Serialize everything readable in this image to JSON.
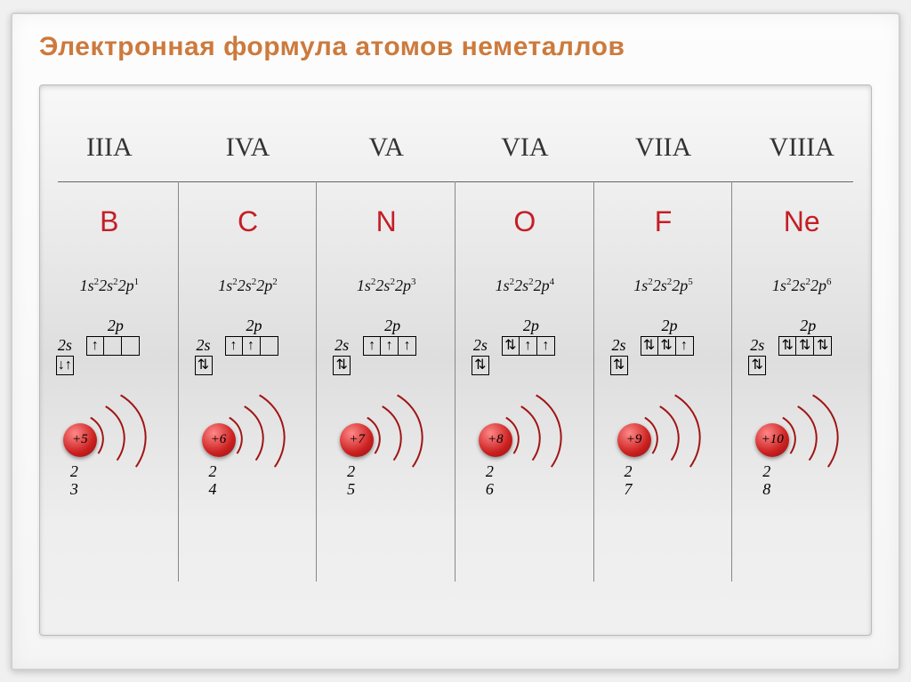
{
  "title": "Электронная формула атомов неметаллов",
  "colors": {
    "title": "#cc7a3d",
    "symbol": "#c41e26",
    "nucleus_gradient": [
      "#ff8888",
      "#cc2020",
      "#881010"
    ],
    "shell": "#a01515",
    "divider": "#888888",
    "text": "#111111",
    "background": "#f0f0f0"
  },
  "fonts": {
    "title_family": "Arial",
    "title_size": 30,
    "group_size": 30,
    "symbol_size": 32,
    "config_size": 18,
    "orbital_label_size": 18
  },
  "orbital_labels": {
    "s": "2s",
    "p": "2p"
  },
  "elements": [
    {
      "group": "IIIA",
      "symbol": "B",
      "config_html": "1s<sup>2</sup>2s<sup>2</sup>2p<sup>1</sup>",
      "orb_2s": "↓↑",
      "orb_2p": [
        "↑",
        "",
        ""
      ],
      "nucleus": "+5",
      "shells": [
        "2",
        "3"
      ]
    },
    {
      "group": "IVA",
      "symbol": "C",
      "config_html": "1s<sup>2</sup>2s<sup>2</sup>2p<sup>2</sup>",
      "orb_2s": "⇅",
      "orb_2p": [
        "↑",
        "↑",
        ""
      ],
      "nucleus": "+6",
      "shells": [
        "2",
        "4"
      ]
    },
    {
      "group": "VA",
      "symbol": "N",
      "config_html": "1s<sup>2</sup>2s<sup>2</sup>2p<sup>3</sup>",
      "orb_2s": "⇅",
      "orb_2p": [
        "↑",
        "↑",
        "↑"
      ],
      "nucleus": "+7",
      "shells": [
        "2",
        "5"
      ]
    },
    {
      "group": "VIA",
      "symbol": "O",
      "config_html": "1s<sup>2</sup>2s<sup>2</sup>2p<sup>4</sup>",
      "orb_2s": "⇅",
      "orb_2p": [
        "⇅",
        "↑",
        "↑"
      ],
      "nucleus": "+8",
      "shells": [
        "2",
        "6"
      ]
    },
    {
      "group": "VIIA",
      "symbol": "F",
      "config_html": "1s<sup>2</sup>2s<sup>2</sup>2p<sup>5</sup>",
      "orb_2s": "⇅",
      "orb_2p": [
        "⇅",
        "⇅",
        "↑"
      ],
      "nucleus": "+9",
      "shells": [
        "2",
        "7"
      ]
    },
    {
      "group": "VIIIA",
      "symbol": "Ne",
      "config_html": "1s<sup>2</sup>2s<sup>2</sup>2p<sup>6</sup>",
      "orb_2s": "⇅",
      "orb_2p": [
        "⇅",
        "⇅",
        "⇅"
      ],
      "nucleus": "+10",
      "shells": [
        "2",
        "8"
      ]
    }
  ]
}
